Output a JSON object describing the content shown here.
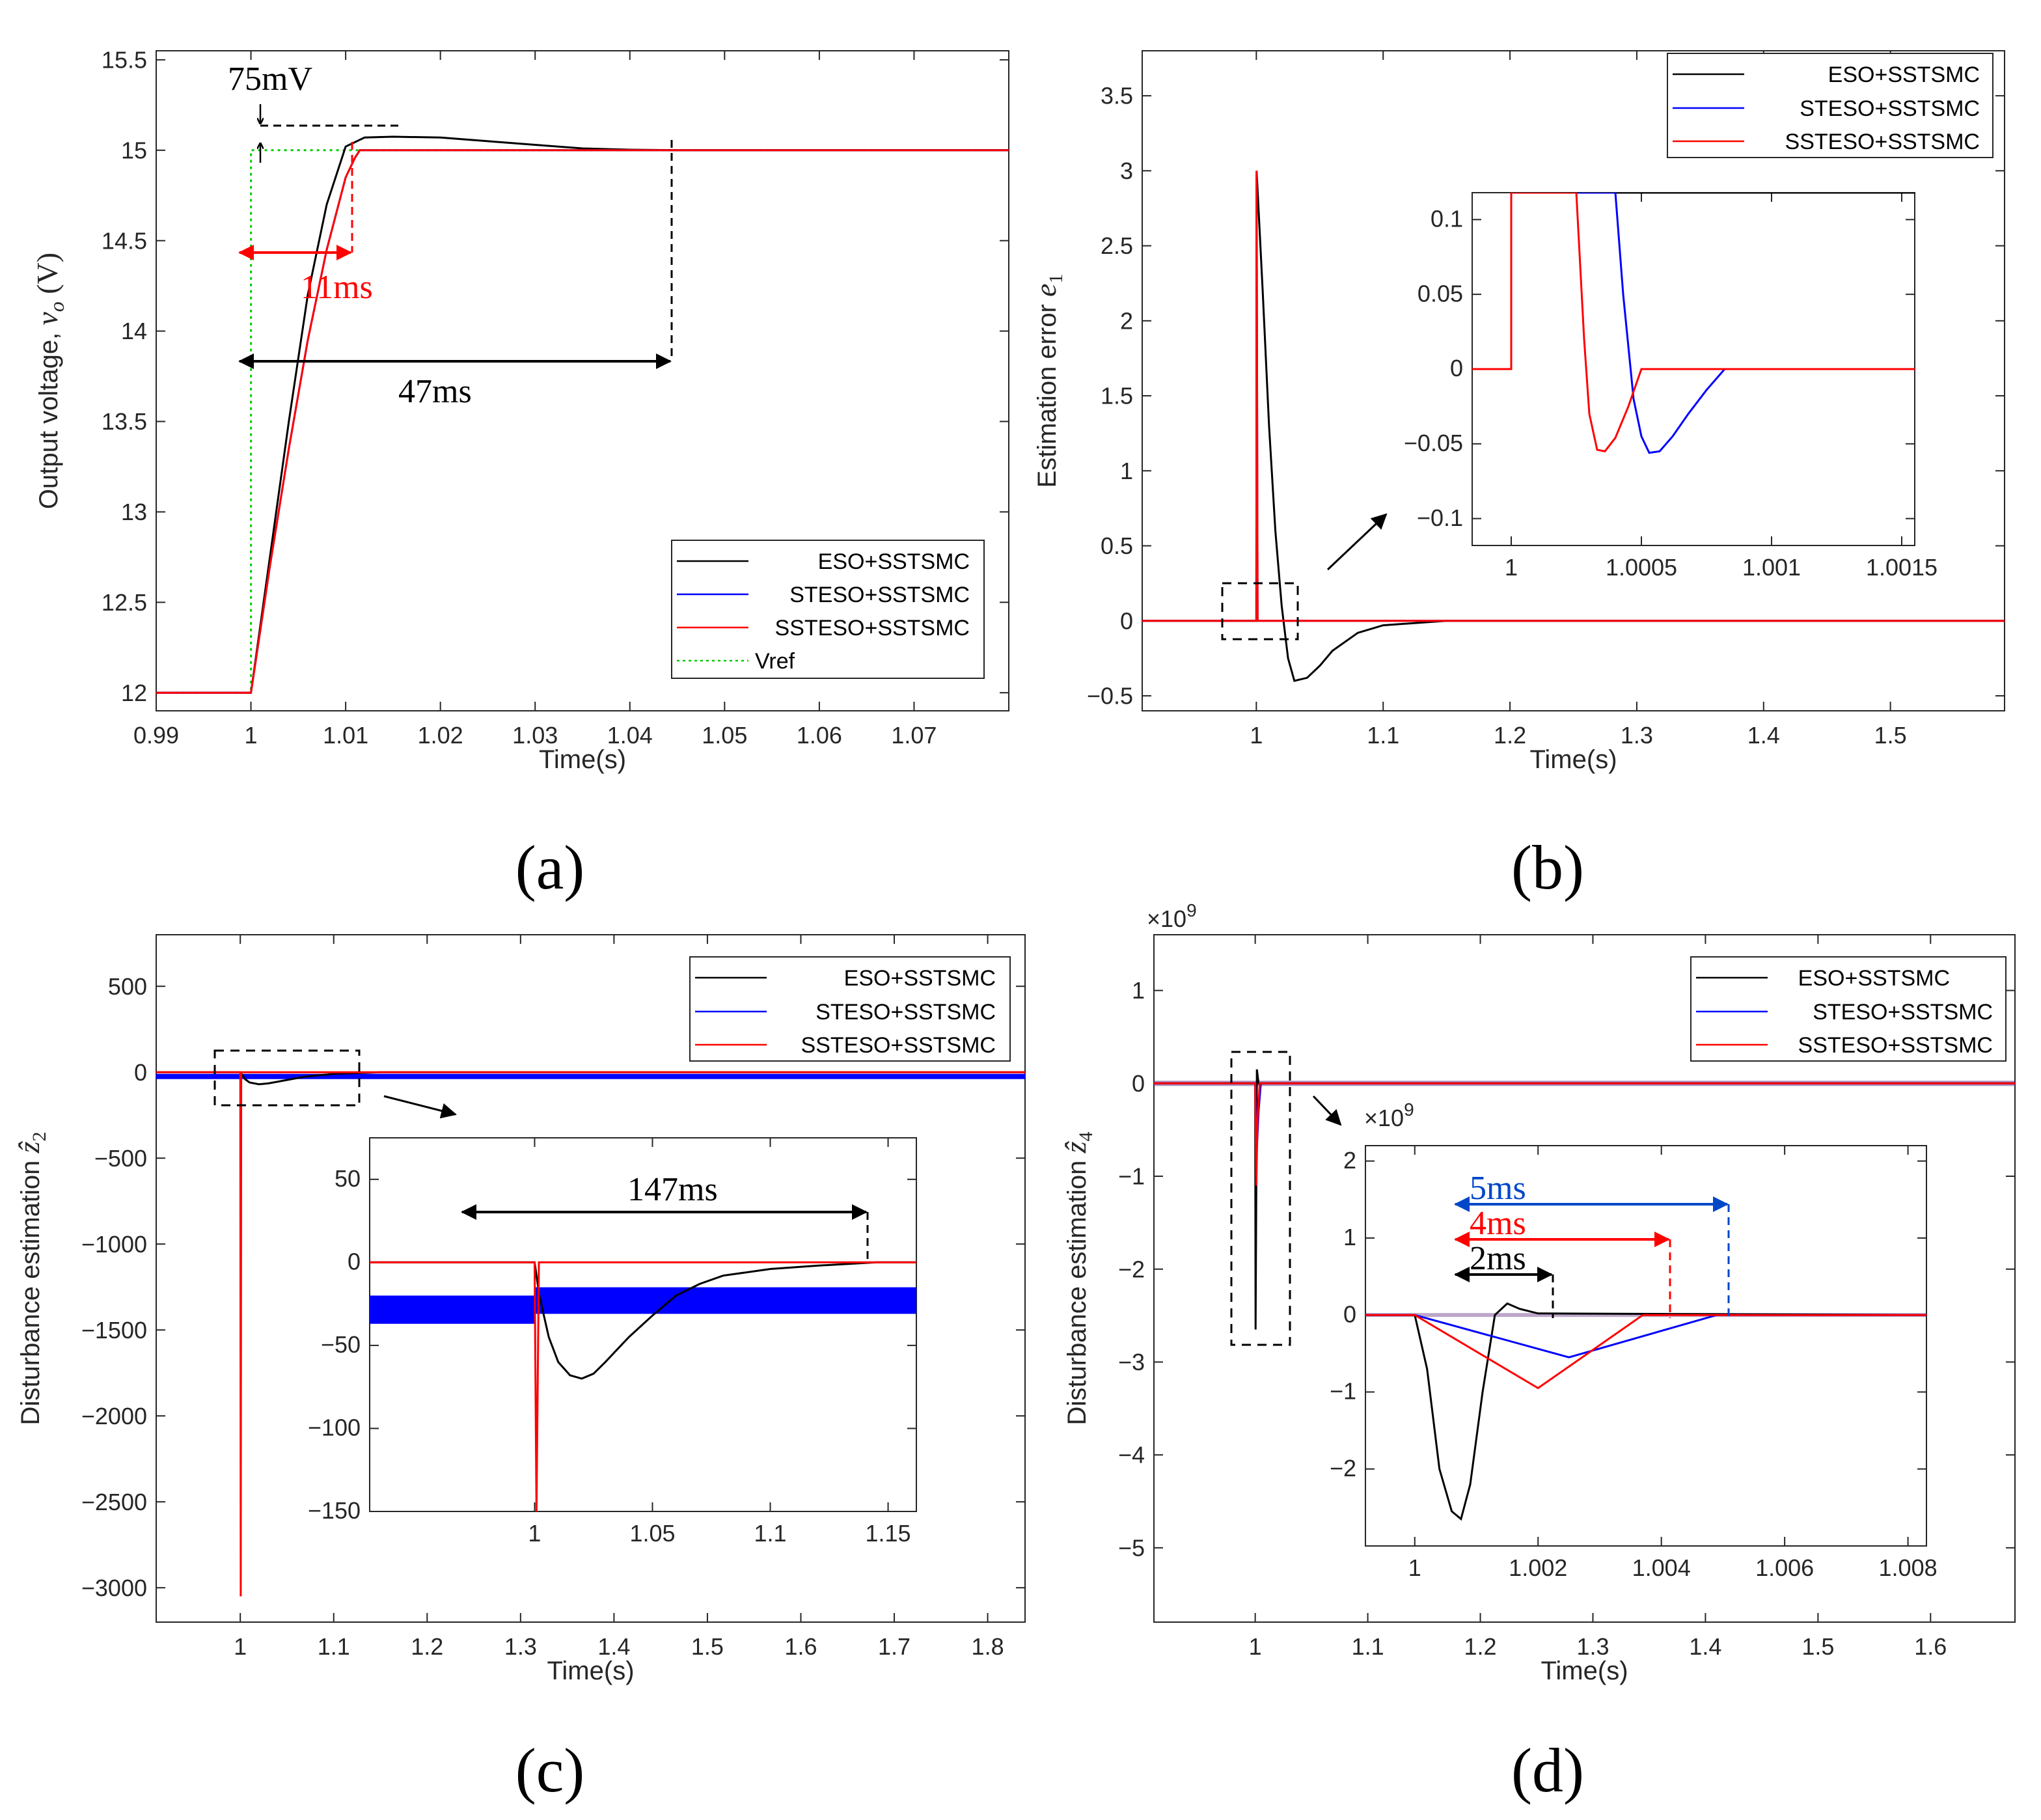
{
  "colors": {
    "eso": "#000000",
    "steso": "#0000ff",
    "ssteso": "#ff0000",
    "vref": "#00cc00",
    "axis": "#262626",
    "annotation_black": "#000000",
    "annotation_red": "#ff0000",
    "annotation_blue": "#0047c8"
  },
  "chart_data": [
    {
      "id": "a",
      "type": "line",
      "caption": "(a)",
      "xlabel": "Time(s)",
      "ylabel": "Output voltage, v_o (V)",
      "xlim": [
        0.99,
        1.08
      ],
      "ylim": [
        11.9,
        15.55
      ],
      "xticks": [
        0.99,
        1,
        1.01,
        1.02,
        1.03,
        1.04,
        1.05,
        1.06,
        1.07
      ],
      "xtick_labels": [
        "0.99",
        "1",
        "1.01",
        "1.02",
        "1.03",
        "1.04",
        "1.05",
        "1.06",
        "1.07"
      ],
      "yticks": [
        12,
        12.5,
        13,
        13.5,
        14,
        14.5,
        15,
        15.5
      ],
      "ytick_labels": [
        "12",
        "12.5",
        "13",
        "13.5",
        "14",
        "14.5",
        "15",
        "15.5"
      ],
      "legend": [
        "ESO+SSTSMC",
        "STESO+SSTSMC",
        "SSTESO+SSTSMC",
        "Vref"
      ],
      "legend_position": "bottom-right",
      "series": [
        {
          "name": "ESO+SSTSMC",
          "x": [
            0.99,
            1.0,
            1.002,
            1.004,
            1.006,
            1.008,
            1.01,
            1.012,
            1.015,
            1.02,
            1.025,
            1.03,
            1.035,
            1.04,
            1.045,
            1.08
          ],
          "y": [
            12,
            12,
            12.75,
            13.5,
            14.2,
            14.7,
            15.02,
            15.07,
            15.075,
            15.07,
            15.05,
            15.03,
            15.01,
            15.003,
            15.0,
            15.0
          ]
        },
        {
          "name": "STESO+SSTSMC",
          "x": [
            0.99,
            1.0,
            1.002,
            1.004,
            1.006,
            1.008,
            1.01,
            1.011,
            1.0115,
            1.08
          ],
          "y": [
            12,
            12,
            12.7,
            13.35,
            13.95,
            14.45,
            14.85,
            14.96,
            15.0,
            15.0
          ]
        },
        {
          "name": "SSTESO+SSTSMC",
          "x": [
            0.99,
            1.0,
            1.002,
            1.004,
            1.006,
            1.008,
            1.01,
            1.011,
            1.0115,
            1.08
          ],
          "y": [
            12,
            12,
            12.7,
            13.35,
            13.95,
            14.45,
            14.85,
            14.96,
            15.0,
            15.0
          ]
        },
        {
          "name": "Vref",
          "x": [
            0.99,
            1.0,
            1.0,
            1.08
          ],
          "y": [
            12,
            12,
            15,
            15
          ]
        }
      ],
      "annotations": [
        {
          "text": "75mV"
        },
        {
          "text": "11ms"
        },
        {
          "text": "47ms"
        }
      ]
    },
    {
      "id": "b",
      "type": "line",
      "caption": "(b)",
      "xlabel": "Time(s)",
      "ylabel": "Estimation error e_1",
      "xlim": [
        0.91,
        1.59
      ],
      "ylim": [
        -0.6,
        3.8
      ],
      "xticks": [
        1,
        1.1,
        1.2,
        1.3,
        1.4,
        1.5
      ],
      "xtick_labels": [
        "1",
        "1.1",
        "1.2",
        "1.3",
        "1.4",
        "1.5"
      ],
      "yticks": [
        -0.5,
        0,
        0.5,
        1,
        1.5,
        2,
        2.5,
        3,
        3.5
      ],
      "ytick_labels": [
        "−0.5",
        "0",
        "0.5",
        "1",
        "1.5",
        "2",
        "2.5",
        "3",
        "3.5"
      ],
      "legend": [
        "ESO+SSTSMC",
        "STESO+SSTSMC",
        "SSTESO+SSTSMC"
      ],
      "legend_position": "top-right",
      "series": [
        {
          "name": "ESO+SSTSMC",
          "x": [
            0.91,
            1.0,
            1.0002,
            1.005,
            1.01,
            1.015,
            1.02,
            1.025,
            1.03,
            1.04,
            1.05,
            1.06,
            1.08,
            1.1,
            1.15,
            1.59
          ],
          "y": [
            0,
            0,
            3.0,
            2.2,
            1.3,
            0.6,
            0.1,
            -0.25,
            -0.4,
            -0.38,
            -0.3,
            -0.2,
            -0.08,
            -0.03,
            0,
            0
          ]
        },
        {
          "name": "STESO+SSTSMC",
          "x": [
            0.91,
            1.0,
            1.0002,
            1.001,
            1.59
          ],
          "y": [
            0,
            0,
            2.98,
            0,
            0
          ]
        },
        {
          "name": "SSTESO+SSTSMC",
          "x": [
            0.91,
            1.0,
            1.0002,
            1.001,
            1.59
          ],
          "y": [
            0,
            0,
            3.0,
            0,
            0
          ]
        }
      ],
      "inset": {
        "xlim": [
          0.99985,
          1.00155
        ],
        "ylim": [
          -0.118,
          0.118
        ],
        "xticks": [
          1,
          1.0005,
          1.001,
          1.0015
        ],
        "xtick_labels": [
          "1",
          "1.0005",
          "1.001",
          "1.0015"
        ],
        "yticks": [
          -0.1,
          -0.05,
          0,
          0.05,
          0.1
        ],
        "ytick_labels": [
          "−0.1",
          "−0.05",
          "0",
          "0.05",
          "0.1"
        ],
        "series": [
          {
            "name": "ESO+SSTSMC",
            "x": [
              0.99985,
              1.0,
              1.0,
              1.00155
            ],
            "y": [
              0,
              0,
              0.118,
              0.118
            ]
          },
          {
            "name": "STESO+SSTSMC",
            "x": [
              0.99985,
              1.0,
              1.0,
              1.0004,
              1.0004,
              1.00043,
              1.00047,
              1.0005,
              1.00053,
              1.00057,
              1.00062,
              1.00068,
              1.00075,
              1.00082,
              1.00155
            ],
            "y": [
              0,
              0,
              0.118,
              0.118,
              0.118,
              0.05,
              -0.02,
              -0.045,
              -0.056,
              -0.055,
              -0.045,
              -0.03,
              -0.014,
              0,
              0
            ]
          },
          {
            "name": "SSTESO+SSTSMC",
            "x": [
              0.99985,
              1.0,
              1.0,
              1.00025,
              1.00025,
              1.00028,
              1.0003,
              1.00033,
              1.00036,
              1.0004,
              1.00045,
              1.0005,
              1.00155
            ],
            "y": [
              0,
              0,
              0.118,
              0.118,
              0.118,
              0.02,
              -0.03,
              -0.054,
              -0.055,
              -0.046,
              -0.025,
              0,
              0
            ]
          }
        ]
      }
    },
    {
      "id": "c",
      "type": "line",
      "caption": "(c)",
      "xlabel": "Time(s)",
      "ylabel": "Disturbance estimation ẑ_2",
      "xlim": [
        0.91,
        1.84
      ],
      "ylim": [
        -3200,
        800
      ],
      "xticks": [
        1,
        1.1,
        1.2,
        1.3,
        1.4,
        1.5,
        1.6,
        1.7,
        1.8
      ],
      "xtick_labels": [
        "1",
        "1.1",
        "1.2",
        "1.3",
        "1.4",
        "1.5",
        "1.6",
        "1.7",
        "1.8"
      ],
      "yticks": [
        -3000,
        -2500,
        -2000,
        -1500,
        -1000,
        -500,
        0,
        500
      ],
      "ytick_labels": [
        "−3000",
        "−2500",
        "−2000",
        "−1500",
        "−1000",
        "−500",
        "0",
        "500"
      ],
      "legend": [
        "ESO+SSTSMC",
        "STESO+SSTSMC",
        "SSTESO+SSTSMC"
      ],
      "legend_position": "top-right",
      "series": [
        {
          "name": "ESO+SSTSMC",
          "x": [
            0.91,
            1.0,
            1.005,
            1.01,
            1.02,
            1.03,
            1.05,
            1.07,
            1.1,
            1.15,
            1.84
          ],
          "y": [
            0,
            0,
            -40,
            -60,
            -70,
            -65,
            -45,
            -25,
            -10,
            0,
            0
          ]
        },
        {
          "name": "STESO+SSTSMC",
          "x": [
            0.91,
            1.84
          ],
          "y": [
            -25,
            -25
          ]
        },
        {
          "name": "SSTESO+SSTSMC",
          "x": [
            0.91,
            1.0,
            1.0005,
            1.001,
            1.84
          ],
          "y": [
            0,
            0,
            -3050,
            0,
            0
          ]
        }
      ],
      "inset": {
        "xlim": [
          0.93,
          1.162
        ],
        "ylim": [
          -150,
          75
        ],
        "xticks": [
          1,
          1.05,
          1.1,
          1.15
        ],
        "xtick_labels": [
          "1",
          "1.05",
          "1.1",
          "1.15"
        ],
        "yticks": [
          -150,
          -100,
          -50,
          0,
          50
        ],
        "ytick_labels": [
          "−150",
          "−100",
          "−50",
          "0",
          "50"
        ],
        "annotation": "147ms",
        "series": [
          {
            "name": "ESO+SSTSMC",
            "x": [
              0.93,
              1.0,
              1.002,
              1.006,
              1.01,
              1.015,
              1.02,
              1.025,
              1.03,
              1.04,
              1.05,
              1.06,
              1.07,
              1.08,
              1.1,
              1.12,
              1.145,
              1.162
            ],
            "y": [
              0,
              0,
              -20,
              -45,
              -60,
              -68,
              -70,
              -67,
              -60,
              -45,
              -32,
              -20,
              -13,
              -8,
              -4,
              -2,
              0,
              0
            ]
          },
          {
            "name": "SSTESO+SSTSMC",
            "x": [
              0.93,
              1.0,
              1.0008,
              1.0018,
              1.162
            ],
            "y": [
              0,
              0,
              -150,
              0,
              0
            ]
          }
        ],
        "bands": [
          {
            "name": "STESO+SSTSMC",
            "x": [
              0.93,
              1.0
            ],
            "y": [
              -37,
              -20
            ]
          },
          {
            "name": "STESO+SSTSMC",
            "x": [
              1.0,
              1.162
            ],
            "y": [
              -31,
              -15
            ]
          }
        ]
      }
    },
    {
      "id": "d",
      "type": "line",
      "caption": "(d)",
      "xlabel": "Time(s)",
      "ylabel": "Disturbance estimation ẑ_4",
      "exponent_label": "×10",
      "exponent_power": "9",
      "xlim": [
        0.91,
        1.675
      ],
      "ylim": [
        -5.8,
        1.6
      ],
      "xticks": [
        1,
        1.1,
        1.2,
        1.3,
        1.4,
        1.5,
        1.6
      ],
      "xtick_labels": [
        "1",
        "1.1",
        "1.2",
        "1.3",
        "1.4",
        "1.5",
        "1.6"
      ],
      "yticks": [
        -5,
        -4,
        -3,
        -2,
        -1,
        0,
        1
      ],
      "ytick_labels": [
        "−5",
        "−4",
        "−3",
        "−2",
        "−1",
        "0",
        "1"
      ],
      "legend": [
        "ESO+SSTSMC",
        "STESO+SSTSMC",
        "SSTESO+SSTSMC"
      ],
      "legend_position": "top-right",
      "series": [
        {
          "name": "ESO+SSTSMC",
          "x": [
            0.91,
            1.0,
            1.0003,
            1.001,
            1.0015,
            1.003,
            1.675
          ],
          "y": [
            0,
            0,
            -2.65,
            -1.0,
            0.15,
            0,
            0
          ]
        },
        {
          "name": "STESO+SSTSMC",
          "x": [
            0.91,
            1.0,
            1.0015,
            1.003,
            1.005,
            1.675
          ],
          "y": [
            0,
            0,
            -0.7,
            -0.3,
            0,
            0
          ]
        },
        {
          "name": "SSTESO+SSTSMC",
          "x": [
            0.91,
            1.0,
            1.001,
            1.002,
            1.004,
            1.675
          ],
          "y": [
            0,
            0,
            -1.1,
            -0.4,
            0,
            0
          ]
        }
      ],
      "inset": {
        "exponent_label": "×10",
        "exponent_power": "9",
        "xlim": [
          0.9992,
          1.0083
        ],
        "ylim": [
          -3.0,
          2.2
        ],
        "xticks": [
          1,
          1.002,
          1.004,
          1.006,
          1.008
        ],
        "xtick_labels": [
          "1",
          "1.002",
          "1.004",
          "1.006",
          "1.008"
        ],
        "yticks": [
          -2,
          -1,
          0,
          1,
          2
        ],
        "ytick_labels": [
          "−2",
          "−1",
          "0",
          "1",
          "2"
        ],
        "annotations": [
          {
            "text": "5ms"
          },
          {
            "text": "4ms"
          },
          {
            "text": "2ms"
          }
        ],
        "series": [
          {
            "name": "ESO+SSTSMC",
            "x": [
              0.9992,
              1.0,
              1.0002,
              1.0004,
              1.0006,
              1.00075,
              1.0009,
              1.0011,
              1.0013,
              1.0015,
              1.0017,
              1.002,
              1.0083
            ],
            "y": [
              0,
              0,
              -0.7,
              -2.0,
              -2.55,
              -2.65,
              -2.2,
              -1.0,
              0.0,
              0.15,
              0.08,
              0.02,
              0
            ]
          },
          {
            "name": "STESO+SSTSMC",
            "x": [
              0.9992,
              1.0,
              1.0025,
              1.0049,
              1.0083
            ],
            "y": [
              0,
              0,
              -0.55,
              0,
              0
            ]
          },
          {
            "name": "SSTESO+SSTSMC",
            "x": [
              0.9992,
              1.0,
              1.002,
              1.0037,
              1.0083
            ],
            "y": [
              0,
              0,
              -0.95,
              0,
              0
            ]
          }
        ]
      }
    }
  ]
}
